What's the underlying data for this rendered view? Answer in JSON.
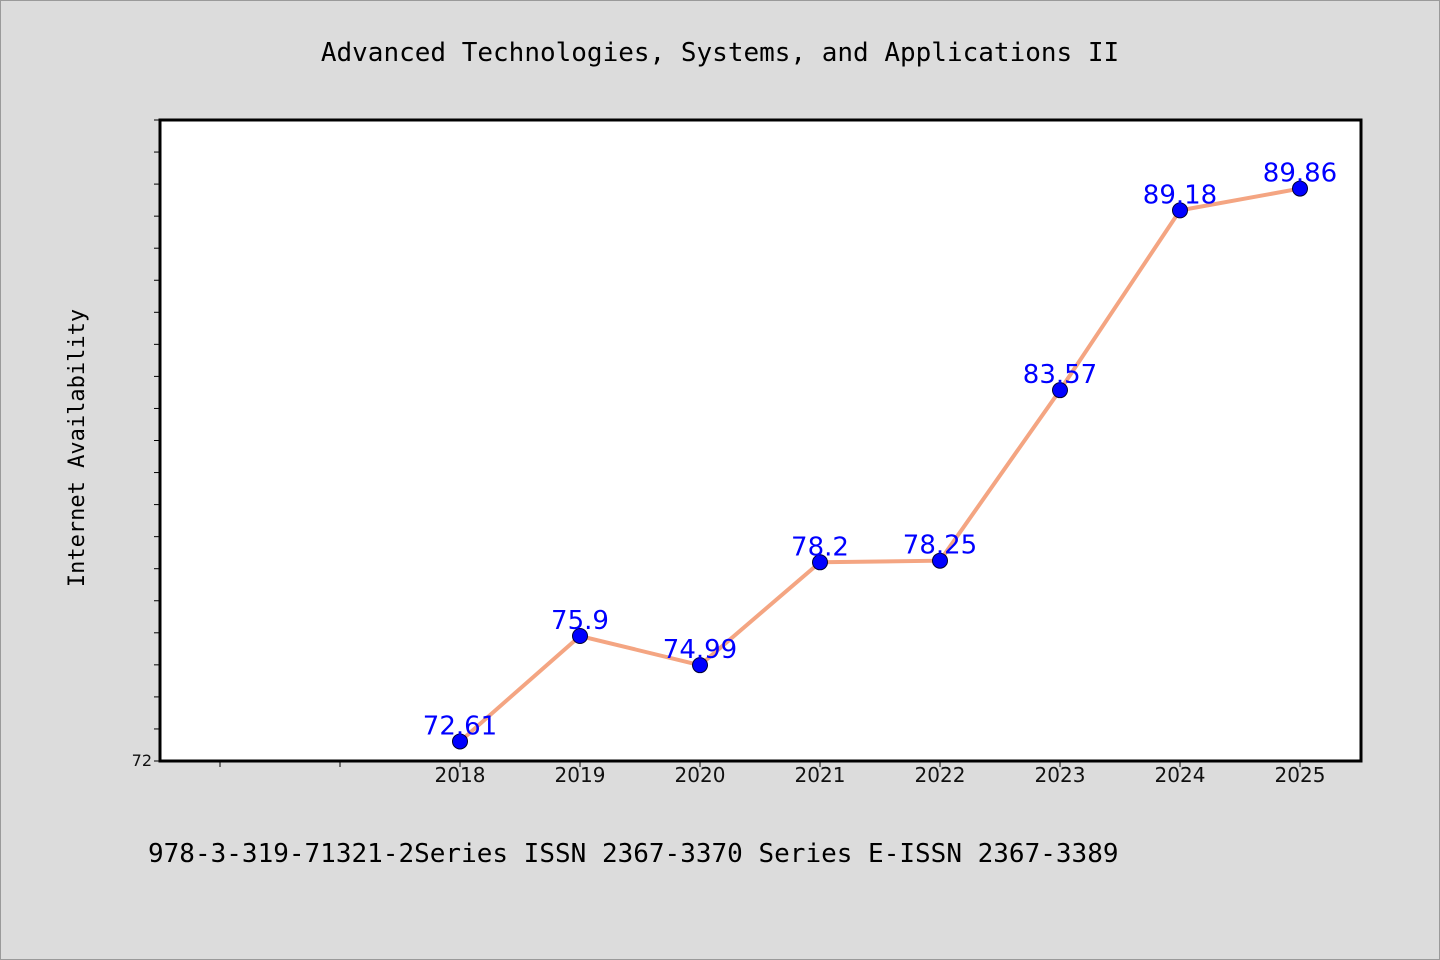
{
  "chart_data": {
    "type": "line",
    "title": "Advanced Technologies, Systems, and Applications II",
    "xlabel": "",
    "ylabel": "Internet Availability",
    "categories": [
      "2018",
      "2019",
      "2020",
      "2021",
      "2022",
      "2023",
      "2024",
      "2025"
    ],
    "series": [
      {
        "values": [
          72.61,
          75.9,
          74.99,
          78.2,
          78.25,
          83.57,
          89.18,
          89.86
        ],
        "data_labels": [
          "72.61",
          "75.9",
          "74.99",
          "78.2",
          "78.25",
          "83.57",
          "89.18",
          "89.86"
        ]
      }
    ],
    "y_tick_labels": [
      "72"
    ],
    "ylim": [
      72,
      92
    ],
    "x_slots": 10,
    "grid": false,
    "legend": "none",
    "colors": {
      "line": "#f4a582",
      "marker": "#0000ff",
      "data_label": "#0000ff",
      "plot_background": "#ffffff",
      "page_background": "#dcdcdc"
    }
  },
  "footer": "978-3-319-71321-2Series ISSN 2367-3370 Series E-ISSN 2367-3389"
}
